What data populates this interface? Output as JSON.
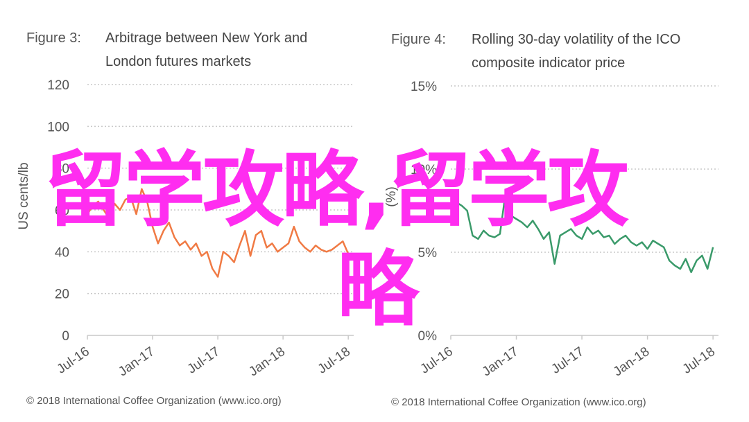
{
  "colors": {
    "orange": "#f07a44",
    "green": "#3a9a6a",
    "grid": "#c9c9c9",
    "axis_text": "#555555",
    "watermark": "#ff2df0"
  },
  "watermark": {
    "line1": "留学攻略,留学攻",
    "line2": "略"
  },
  "chart_data": [
    {
      "type": "line",
      "figure_label": "Figure 3:",
      "title": "Arbitrage between New York and\nLondon futures markets",
      "ylabel": "US cents/lb",
      "xlabel": "",
      "ylim": [
        0,
        120
      ],
      "yticks": [
        0,
        20,
        40,
        60,
        80,
        100,
        120
      ],
      "ytick_labels": [
        "0",
        "20",
        "40",
        "60",
        "80",
        "100",
        "120"
      ],
      "grid": true,
      "x_tick_labels": [
        "Jul-16",
        "Jan-17",
        "Jul-17",
        "Jan-18",
        "Jul-18"
      ],
      "x_tick_positions": [
        0,
        6,
        12,
        18,
        24
      ],
      "xlim": [
        0,
        24.5
      ],
      "series": [
        {
          "color": "#f07a44",
          "x": [
            0,
            0.5,
            1,
            1.5,
            2,
            2.5,
            3,
            3.5,
            4,
            4.5,
            5,
            5.5,
            6,
            6.5,
            7,
            7.5,
            8,
            8.5,
            9,
            9.5,
            10,
            10.5,
            11,
            11.5,
            12,
            12.5,
            13,
            13.5,
            14,
            14.5,
            15,
            15.5,
            16,
            16.5,
            17,
            17.5,
            18,
            18.5,
            19,
            19.5,
            20,
            20.5,
            21,
            21.5,
            22,
            22.5,
            23,
            23.5,
            24
          ],
          "y": [
            58,
            62,
            64,
            60,
            56,
            63,
            60,
            65,
            66,
            58,
            70,
            64,
            52,
            44,
            50,
            54,
            47,
            43,
            45,
            41,
            44,
            38,
            40,
            32,
            28,
            40,
            38,
            35,
            43,
            50,
            38,
            48,
            50,
            42,
            44,
            40,
            42,
            44,
            52,
            45,
            42,
            40,
            43,
            41,
            40,
            41,
            43,
            45,
            39
          ]
        }
      ],
      "copyright": "© 2018 International Coffee Organization (www.ico.org)"
    },
    {
      "type": "line",
      "figure_label": "Figure 4:",
      "title": "Rolling 30-day volatility of the ICO\ncomposite indicator price",
      "ylabel": "(%)",
      "xlabel": "",
      "ylim": [
        0,
        15
      ],
      "yticks": [
        0,
        5,
        10,
        15
      ],
      "ytick_labels": [
        "0%",
        "5%",
        "10%",
        "15%"
      ],
      "grid": true,
      "x_tick_labels": [
        "Jul-16",
        "Jan-17",
        "Jul-17",
        "Jan-18",
        "Jul-18"
      ],
      "x_tick_positions": [
        0,
        6,
        12,
        18,
        24
      ],
      "xlim": [
        0,
        24.5
      ],
      "series": [
        {
          "color": "#3a9a6a",
          "x": [
            0,
            0.5,
            1,
            1.5,
            2,
            2.5,
            3,
            3.5,
            4,
            4.5,
            5,
            5.5,
            6,
            6.5,
            7,
            7.5,
            8,
            8.5,
            9,
            9.5,
            10,
            10.5,
            11,
            11.5,
            12,
            12.5,
            13,
            13.5,
            14,
            14.5,
            15,
            15.5,
            16,
            16.5,
            17,
            17.5,
            18,
            18.5,
            19,
            19.5,
            20,
            20.5,
            21,
            21.5,
            22,
            22.5,
            23,
            23.5,
            24
          ],
          "y": [
            8.2,
            8.0,
            7.8,
            7.5,
            6.0,
            5.8,
            6.3,
            6.0,
            5.9,
            6.1,
            8.5,
            7.2,
            7.0,
            6.8,
            6.5,
            6.9,
            6.4,
            5.8,
            6.2,
            4.3,
            6.0,
            6.2,
            6.4,
            6.0,
            5.8,
            6.5,
            6.1,
            6.3,
            5.9,
            6.0,
            5.5,
            5.8,
            6.0,
            5.6,
            5.4,
            5.6,
            5.2,
            5.7,
            5.5,
            5.3,
            4.5,
            4.2,
            4.0,
            4.6,
            3.8,
            4.5,
            4.8,
            4.0,
            5.3
          ]
        }
      ],
      "copyright": "© 2018 International Coffee Organization (www.ico.org)"
    }
  ]
}
